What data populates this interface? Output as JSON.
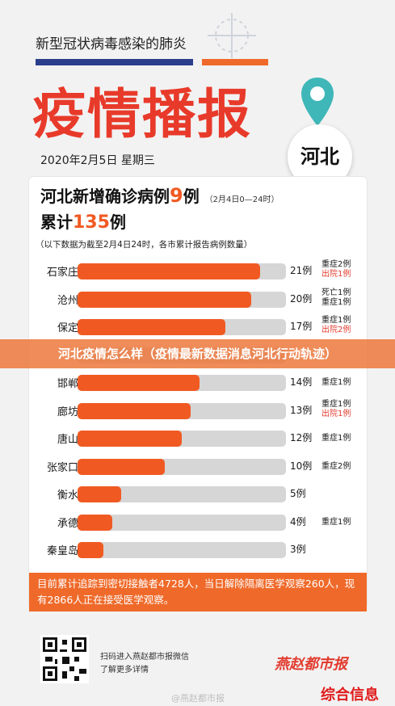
{
  "header": {
    "subtitle": "新型冠状病毒感染的肺炎",
    "title": "疫情播报",
    "date": "2020年2月5日 星期三",
    "region": "河北"
  },
  "card": {
    "new_cases_prefix": "河北新增确诊病例",
    "new_cases_count": "9",
    "new_cases_suffix": "例",
    "time_range": "（2月4日0—24时）",
    "cumulative_prefix": "累计",
    "cumulative_count": "135",
    "cumulative_suffix": "例",
    "note": "（以下数据为截至2月4日24时，各市累计报告病例数量）",
    "rows": [
      {
        "city": "石家庄",
        "count": "21例",
        "value": 21,
        "notes": [
          "重症2例",
          "出院1例"
        ],
        "note_colors": [
          "#1a1a1a",
          "#e23b2e"
        ]
      },
      {
        "city": "沧州",
        "count": "20例",
        "value": 20,
        "notes": [
          "死亡1例",
          "重症1例"
        ],
        "note_colors": [
          "#1a1a1a",
          "#1a1a1a"
        ]
      },
      {
        "city": "保定",
        "count": "17例",
        "value": 17,
        "notes": [
          "重症1例",
          "出院2例"
        ],
        "note_colors": [
          "#1a1a1a",
          "#e23b2e"
        ]
      },
      {
        "city": "",
        "count": "",
        "value": 0,
        "notes": [],
        "note_colors": []
      },
      {
        "city": "邯郸",
        "count": "14例",
        "value": 14,
        "notes": [
          "重症1例"
        ],
        "note_colors": [
          "#1a1a1a"
        ]
      },
      {
        "city": "廊坊",
        "count": "13例",
        "value": 13,
        "notes": [
          "重症1例",
          "出院1例"
        ],
        "note_colors": [
          "#1a1a1a",
          "#e23b2e"
        ]
      },
      {
        "city": "唐山",
        "count": "12例",
        "value": 12,
        "notes": [
          "重症1例"
        ],
        "note_colors": [
          "#1a1a1a"
        ]
      },
      {
        "city": "张家口",
        "count": "10例",
        "value": 10,
        "notes": [
          "重症2例"
        ],
        "note_colors": [
          "#1a1a1a"
        ]
      },
      {
        "city": "衡水",
        "count": "5例",
        "value": 5,
        "notes": [],
        "note_colors": []
      },
      {
        "city": "承德",
        "count": "4例",
        "value": 4,
        "notes": [
          "重症1例"
        ],
        "note_colors": [
          "#1a1a1a"
        ]
      },
      {
        "city": "秦皇岛",
        "count": "3例",
        "value": 3,
        "notes": [],
        "note_colors": []
      }
    ],
    "max_value": 24,
    "footer": "目前累计追踪到密切接触者4728人，当日解除隔离医学观察260人，现有2866人正在接受医学观察。"
  },
  "banner": "河北疫情怎么样（疫情最新数据消息河北行动轨迹）",
  "bottom": {
    "qr_line1": "扫码进入燕赵都市报微信",
    "qr_line2": "了解更多详情",
    "logo": "燕赵都市报",
    "watermark": "@燕赵都市报",
    "badge": "综合信息"
  },
  "colors": {
    "accent": "#f05a22",
    "navy": "#2b3e8c",
    "teal": "#3fb7b8"
  }
}
